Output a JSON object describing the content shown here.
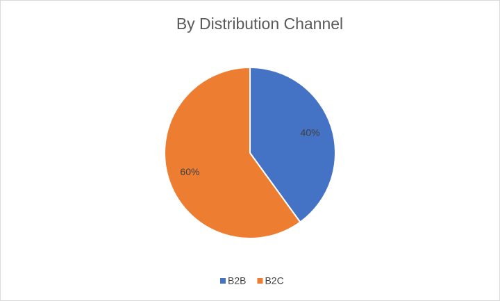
{
  "chart_data": {
    "type": "pie",
    "title": "By Distribution Channel",
    "categories": [
      "B2B",
      "B2C"
    ],
    "values": [
      40,
      60
    ],
    "value_labels": [
      "40%",
      "60%"
    ],
    "colors": [
      "#4472c4",
      "#ed7d31"
    ],
    "legend": "bottom"
  }
}
